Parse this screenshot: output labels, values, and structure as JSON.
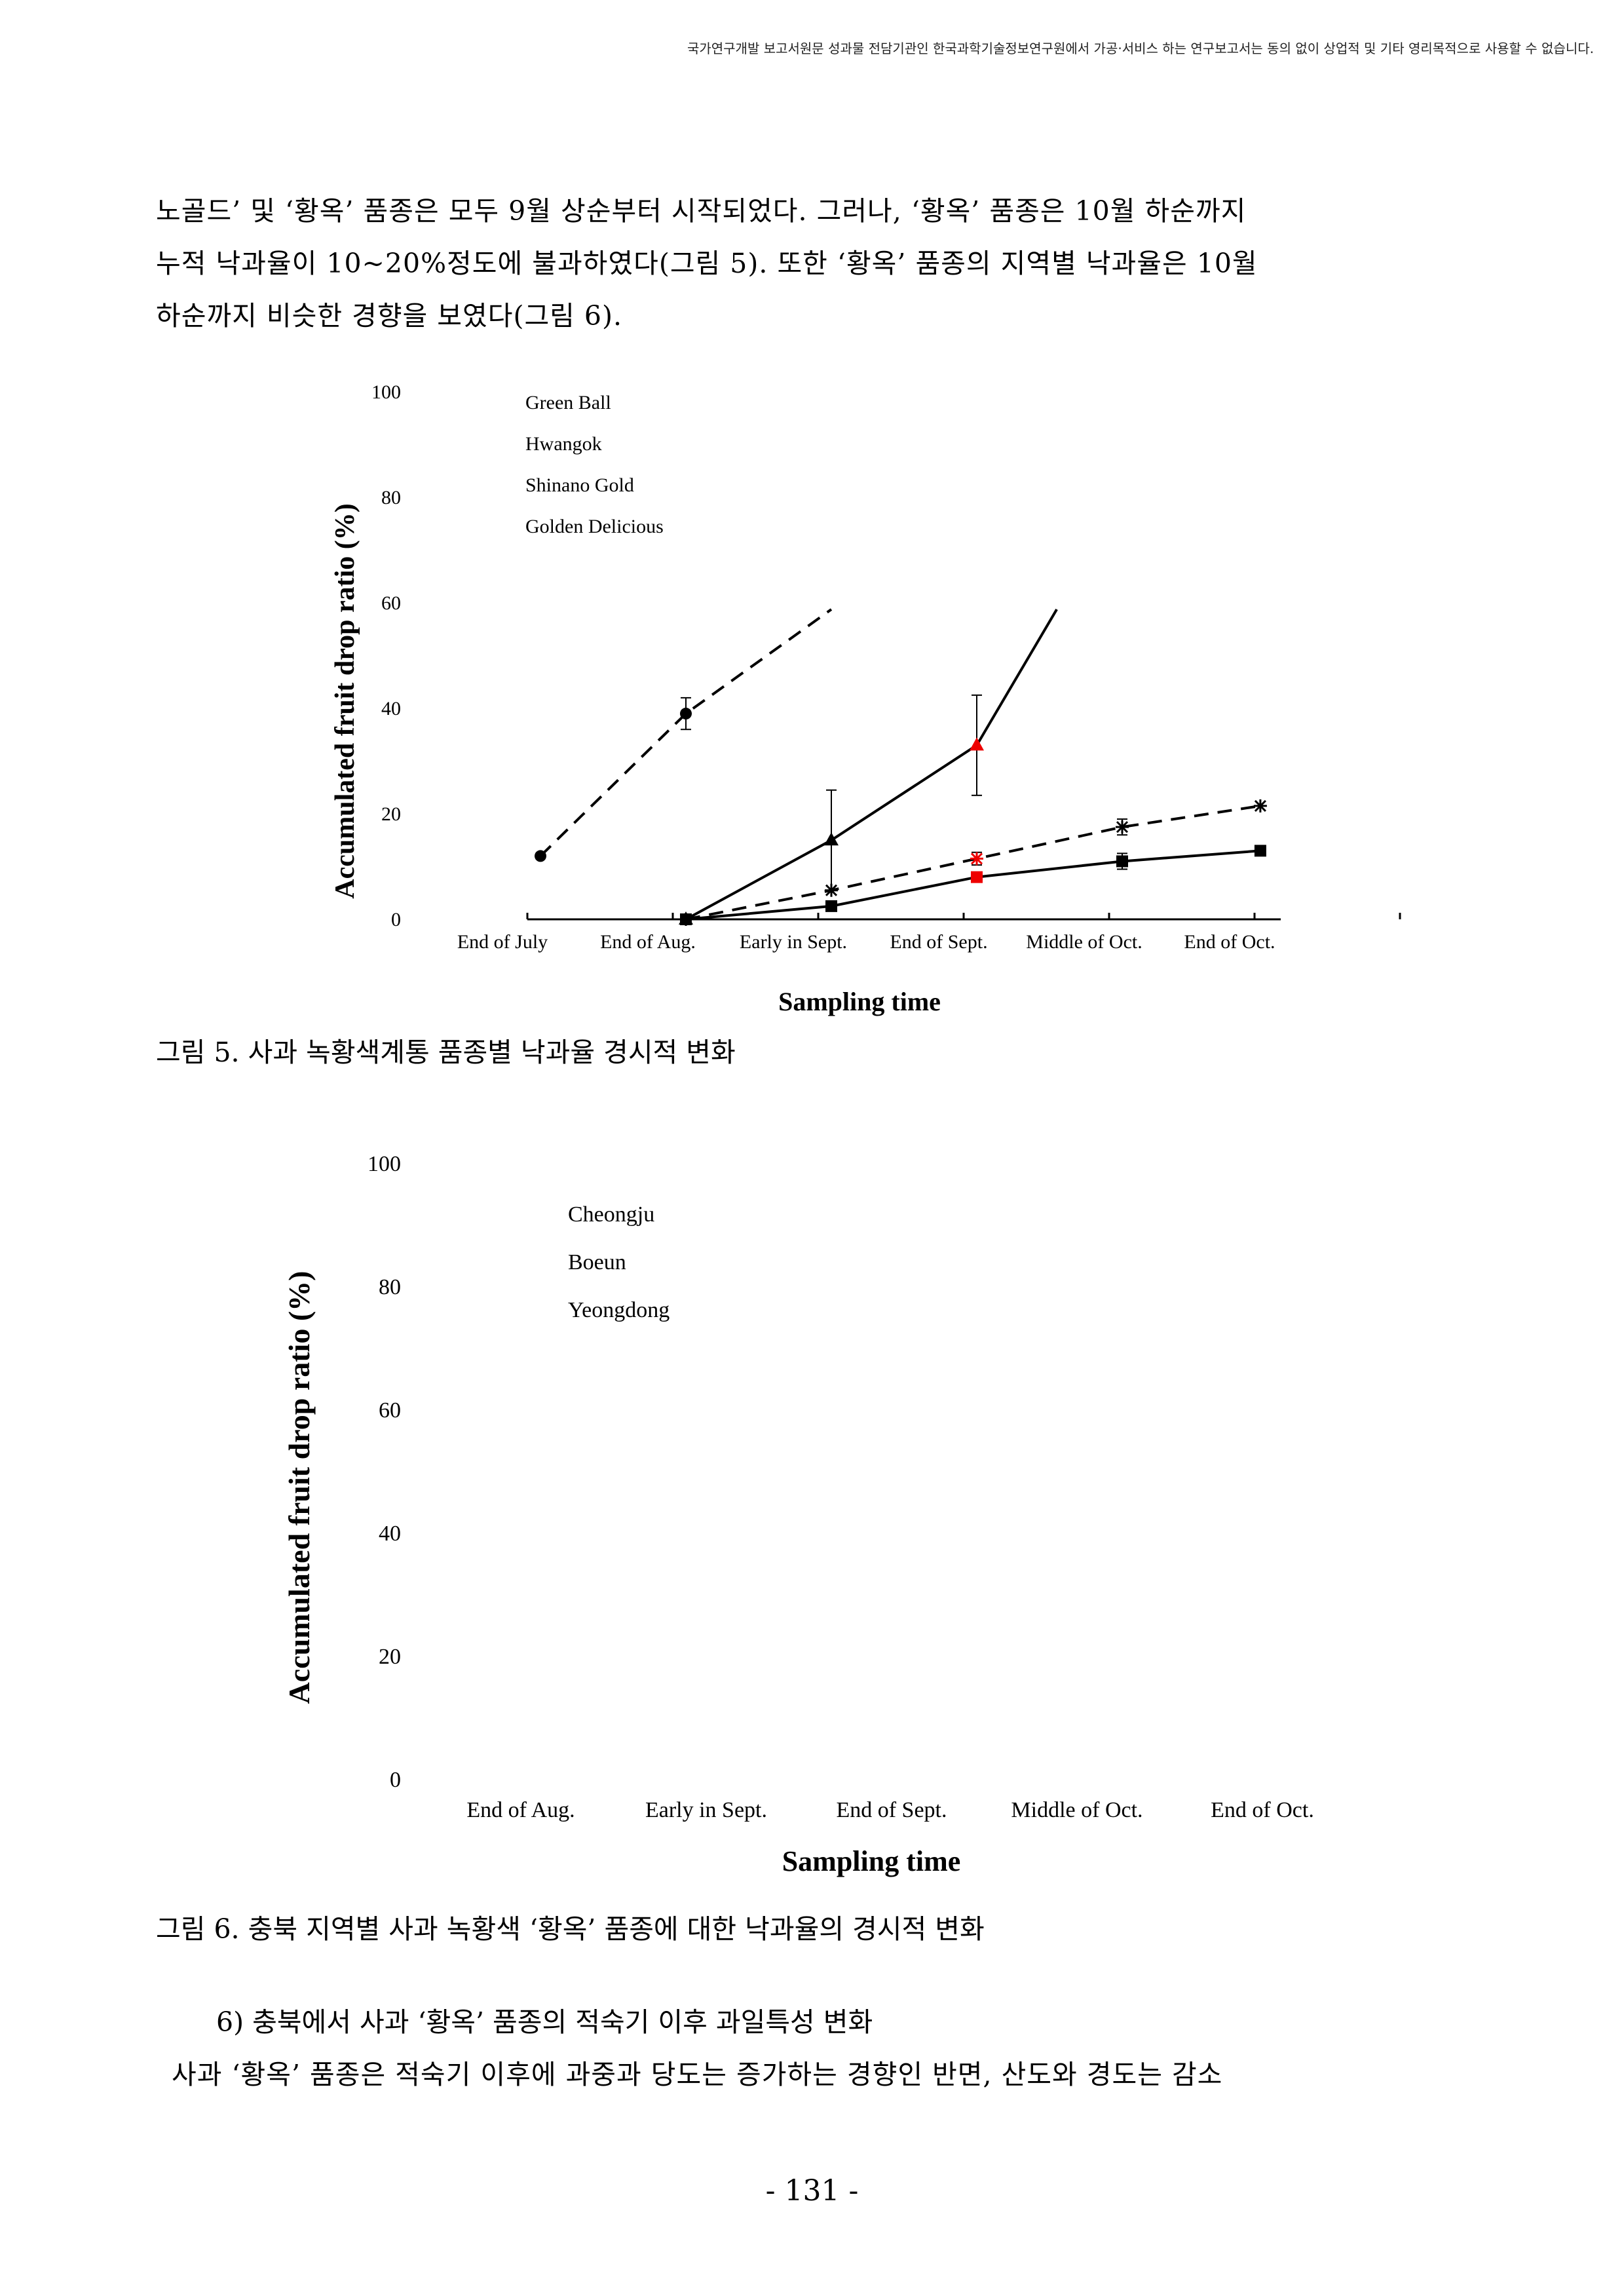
{
  "header": {
    "notice": "국가연구개발 보고서원문 성과물 전담기관인 한국과학기술정보연구원에서 가공·서비스 하는 연구보고서는 동의 없이 상업적 및 기타 영리목적으로 사용할 수 없습니다."
  },
  "body": {
    "para1": [
      "노골드’ 및 ‘황옥’ 품종은 모두 9월 상순부터 시작되었다. 그러나, ‘황옥’ 품종은 10월 하순까지",
      "누적 낙과율이 10~20%정도에 불과하였다(그림 5). 또한 ‘황옥’ 품종의 지역별 낙과율은 10월",
      "하순까지 비슷한 경향을 보였다(그림 6)."
    ],
    "caption1": "그림 5. 사과 녹황색계통 품종별 낙과율 경시적 변화",
    "caption2": "그림 6. 충북 지역별 사과 녹황색 ‘황옥’ 품종에 대한 낙과율의 경시적 변화",
    "subheading": "6) 충북에서 사과 ‘황옥’ 품종의 적숙기 이후 과일특성 변화",
    "para2": "사과 ‘황옥’ 품종은 적숙기 이후에 과중과 당도는 증가하는 경향인 반면, 산도와 경도는 감소"
  },
  "page_number": "- 131 -",
  "chart_data": [
    {
      "type": "line",
      "xlabel": "Sampling time",
      "ylabel": "Accumulated fruit drop ratio (%)",
      "categories": [
        "End of July",
        "End of Aug.",
        "Early in Sept.",
        "End of Sept.",
        "Middle of Oct.",
        "End of Oct."
      ],
      "ylim": [
        0,
        100
      ],
      "yticks": [
        0,
        20,
        40,
        60,
        80,
        100
      ],
      "legend_position": "top-left",
      "legend": [
        "Green Ball",
        "Hwangok",
        "Shinano Gold",
        "Golden Delicious"
      ],
      "series": [
        {
          "name": "Green Ball",
          "style": "dashed",
          "marker": "circle",
          "color": "#000000",
          "points": [
            [
              0,
              12
            ],
            [
              1,
              39
            ],
            [
              2,
              59
            ]
          ],
          "errors": [
            null,
            3,
            null
          ]
        },
        {
          "name": "Shinano Gold",
          "style": "solid",
          "marker": "triangle",
          "color": "#000000",
          "highlight": "#ee0000",
          "points": [
            [
              1,
              0
            ],
            [
              2,
              15
            ],
            [
              3,
              33
            ],
            [
              3.55,
              59
            ]
          ],
          "errors": [
            null,
            9.5,
            9.5,
            null
          ]
        },
        {
          "name": "Golden Delicious",
          "style": "dashed",
          "marker": "asterisk",
          "color": "#000000",
          "highlight": "#ee0000",
          "points": [
            [
              1,
              0
            ],
            [
              2,
              5.5
            ],
            [
              3,
              11.5
            ],
            [
              4,
              17.5
            ],
            [
              4.95,
              21.5
            ]
          ],
          "errors": [
            null,
            null,
            1.2,
            1.5,
            null
          ]
        },
        {
          "name": "Hwangok",
          "style": "solid",
          "marker": "square",
          "color": "#000000",
          "highlight": "#ee0000",
          "points": [
            [
              1,
              0
            ],
            [
              2,
              2.5
            ],
            [
              3,
              8
            ],
            [
              4,
              11
            ],
            [
              4.95,
              13
            ]
          ],
          "errors": [
            null,
            null,
            null,
            1.5,
            null
          ]
        }
      ]
    },
    {
      "type": "line",
      "xlabel": "Sampling time",
      "ylabel": "Accumulated fruit drop ratio (%)",
      "categories": [
        "End of Aug.",
        "Early in Sept.",
        "End of Sept.",
        "Middle of Oct.",
        "End of Oct."
      ],
      "ylim": [
        0,
        100
      ],
      "yticks": [
        0,
        20,
        40,
        60,
        80,
        100
      ],
      "legend_position": "top-left",
      "legend": [
        "Cheongju",
        "Boeun",
        "Yeongdong"
      ],
      "series": []
    }
  ]
}
